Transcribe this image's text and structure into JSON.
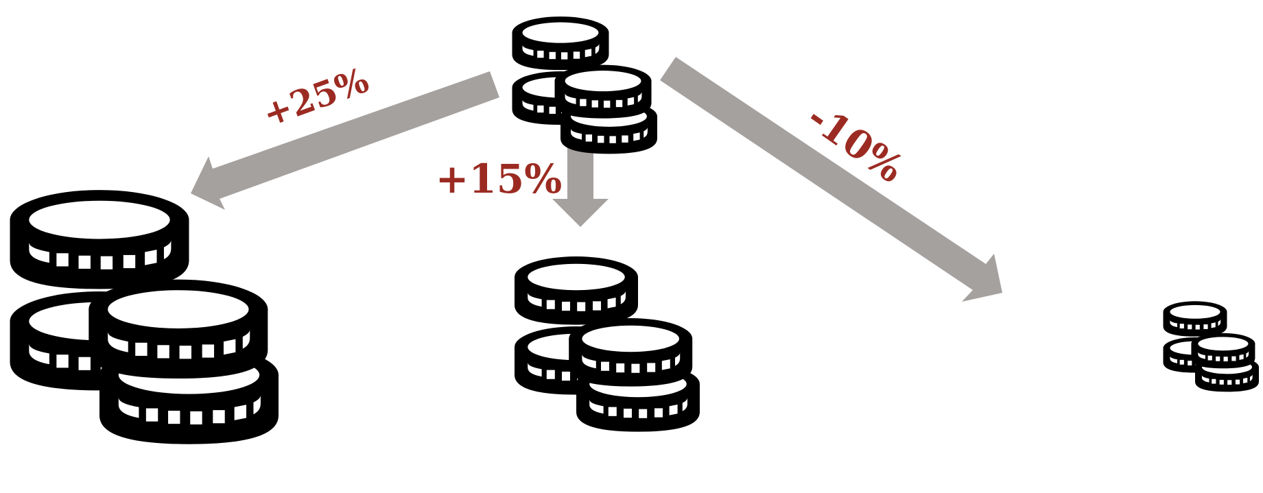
{
  "colors": {
    "arrow": "#a5a19f",
    "label": "#9b2b22",
    "coin": "#000000",
    "background": "#ffffff"
  },
  "icons": {
    "source": "coin-stack-icon",
    "left": "coin-stack-icon",
    "middle": "coin-stack-icon",
    "right": "coin-stack-icon"
  },
  "labels": {
    "left": "+25%",
    "middle": "+15%",
    "right": "-10%"
  }
}
